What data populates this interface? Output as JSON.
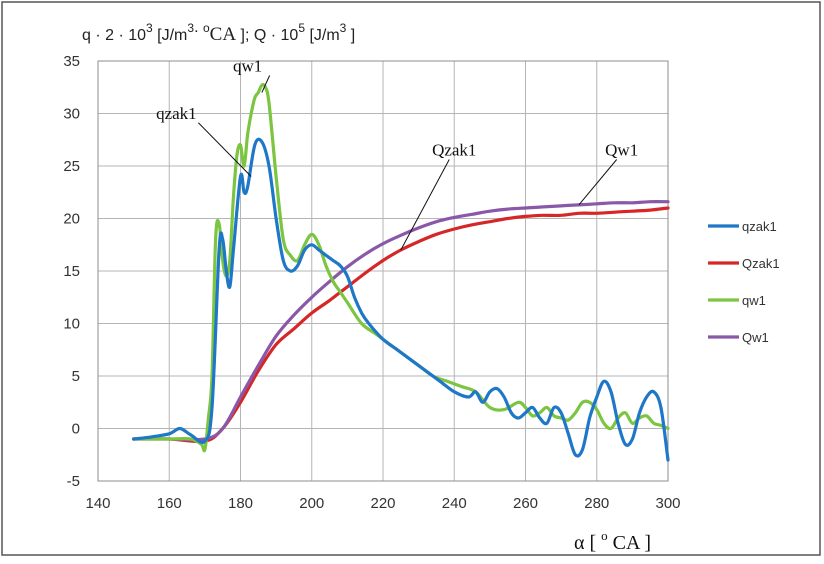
{
  "chart_data": {
    "type": "line",
    "title": "",
    "ylabel": {
      "part1": "q · 2 · 10",
      "exp1": "3",
      "part2": " [J/m",
      "exp2": "3",
      "part3": ". ",
      "deg": "o",
      "part4": "CA",
      "part5": "  ]; Q · 10",
      "exp3": "5",
      "part6": " [J/m",
      "exp4": "3",
      "part7": " ]"
    },
    "xlabel": {
      "alpha": "α",
      "open": " [ ",
      "deg": "o",
      "unit": " CA ",
      "close": "]"
    },
    "xlim": [
      140,
      300
    ],
    "ylim": [
      -5,
      35
    ],
    "xticks": [
      140,
      160,
      180,
      200,
      220,
      240,
      260,
      280,
      300
    ],
    "yticks": [
      -5,
      0,
      5,
      10,
      15,
      20,
      25,
      30,
      35
    ],
    "grid": true,
    "legend_position": "right",
    "series": [
      {
        "name": "qzak1",
        "color": "#1f77c8",
        "points": [
          [
            150,
            -1
          ],
          [
            155,
            -0.8
          ],
          [
            160,
            -0.5
          ],
          [
            163,
            0
          ],
          [
            166,
            -0.6
          ],
          [
            170,
            -1.2
          ],
          [
            172,
            2
          ],
          [
            174,
            17
          ],
          [
            175,
            18
          ],
          [
            176,
            15
          ],
          [
            177,
            13.5
          ],
          [
            178,
            17
          ],
          [
            180,
            24
          ],
          [
            181,
            22.5
          ],
          [
            182,
            23
          ],
          [
            184,
            27
          ],
          [
            186,
            27.3
          ],
          [
            188,
            25
          ],
          [
            190,
            20
          ],
          [
            192,
            16
          ],
          [
            194,
            15
          ],
          [
            196,
            15.5
          ],
          [
            198,
            17
          ],
          [
            200,
            17.5
          ],
          [
            202,
            17
          ],
          [
            204,
            16.5
          ],
          [
            206,
            16
          ],
          [
            208,
            15.5
          ],
          [
            210,
            14.5
          ],
          [
            212,
            12.5
          ],
          [
            214,
            11
          ],
          [
            216,
            10
          ],
          [
            220,
            8.5
          ],
          [
            224,
            7.5
          ],
          [
            228,
            6.5
          ],
          [
            232,
            5.5
          ],
          [
            236,
            4.5
          ],
          [
            240,
            3.5
          ],
          [
            244,
            3
          ],
          [
            246,
            3.5
          ],
          [
            248,
            2.5
          ],
          [
            250,
            3.5
          ],
          [
            252,
            3.8
          ],
          [
            254,
            3
          ],
          [
            256,
            1.5
          ],
          [
            258,
            1
          ],
          [
            260,
            1.5
          ],
          [
            262,
            2
          ],
          [
            264,
            1
          ],
          [
            266,
            0.5
          ],
          [
            268,
            2
          ],
          [
            270,
            1.5
          ],
          [
            272,
            -0.5
          ],
          [
            274,
            -2.5
          ],
          [
            276,
            -2
          ],
          [
            278,
            1
          ],
          [
            280,
            3
          ],
          [
            282,
            4.5
          ],
          [
            284,
            3.5
          ],
          [
            286,
            0.5
          ],
          [
            288,
            -1.5
          ],
          [
            290,
            -1
          ],
          [
            292,
            1.5
          ],
          [
            294,
            3
          ],
          [
            296,
            3.5
          ],
          [
            298,
            2
          ],
          [
            300,
            -3
          ]
        ]
      },
      {
        "name": "Qzak1",
        "color": "#d62728",
        "points": [
          [
            150,
            -1
          ],
          [
            160,
            -1
          ],
          [
            170,
            -1.2
          ],
          [
            175,
            0
          ],
          [
            180,
            2.5
          ],
          [
            185,
            5.5
          ],
          [
            190,
            8
          ],
          [
            195,
            9.5
          ],
          [
            200,
            11
          ],
          [
            205,
            12.2
          ],
          [
            210,
            13.5
          ],
          [
            215,
            14.8
          ],
          [
            220,
            16
          ],
          [
            225,
            17
          ],
          [
            230,
            17.8
          ],
          [
            235,
            18.5
          ],
          [
            240,
            19
          ],
          [
            245,
            19.4
          ],
          [
            250,
            19.7
          ],
          [
            255,
            20
          ],
          [
            260,
            20.2
          ],
          [
            265,
            20.3
          ],
          [
            270,
            20.3
          ],
          [
            275,
            20.5
          ],
          [
            280,
            20.5
          ],
          [
            285,
            20.6
          ],
          [
            290,
            20.7
          ],
          [
            295,
            20.8
          ],
          [
            300,
            21
          ]
        ]
      },
      {
        "name": "qw1",
        "color": "#7cc540",
        "points": [
          [
            150,
            -1
          ],
          [
            160,
            -1
          ],
          [
            166,
            -1
          ],
          [
            169,
            -1.5
          ],
          [
            170,
            -2
          ],
          [
            171,
            1
          ],
          [
            172,
            5
          ],
          [
            173,
            18
          ],
          [
            174,
            19.5
          ],
          [
            175,
            16
          ],
          [
            176,
            14.5
          ],
          [
            177,
            16
          ],
          [
            178,
            22
          ],
          [
            179,
            26
          ],
          [
            180,
            27
          ],
          [
            181,
            25
          ],
          [
            182,
            28
          ],
          [
            183,
            30
          ],
          [
            184,
            31.5
          ],
          [
            185,
            32
          ],
          [
            186,
            32.7
          ],
          [
            187,
            32.5
          ],
          [
            188,
            31
          ],
          [
            190,
            24
          ],
          [
            192,
            18
          ],
          [
            194,
            16.5
          ],
          [
            196,
            16
          ],
          [
            198,
            17.5
          ],
          [
            200,
            18.5
          ],
          [
            202,
            17.5
          ],
          [
            204,
            15.5
          ],
          [
            206,
            14
          ],
          [
            208,
            13
          ],
          [
            210,
            12
          ],
          [
            214,
            10
          ],
          [
            218,
            9
          ],
          [
            222,
            8
          ],
          [
            226,
            7
          ],
          [
            230,
            6
          ],
          [
            234,
            5
          ],
          [
            238,
            4.5
          ],
          [
            242,
            4
          ],
          [
            246,
            3.5
          ],
          [
            250,
            2
          ],
          [
            254,
            1.8
          ],
          [
            258,
            2.5
          ],
          [
            260,
            2
          ],
          [
            262,
            1.2
          ],
          [
            264,
            1.5
          ],
          [
            266,
            2
          ],
          [
            268,
            1.2
          ],
          [
            270,
            1
          ],
          [
            272,
            0.8
          ],
          [
            274,
            1.5
          ],
          [
            276,
            2.5
          ],
          [
            278,
            2.5
          ],
          [
            280,
            1.8
          ],
          [
            282,
            0.5
          ],
          [
            284,
            0
          ],
          [
            286,
            1
          ],
          [
            288,
            1.5
          ],
          [
            290,
            0.5
          ],
          [
            292,
            1
          ],
          [
            294,
            1.2
          ],
          [
            296,
            0.5
          ],
          [
            298,
            0.3
          ],
          [
            300,
            0
          ]
        ]
      },
      {
        "name": "Qw1",
        "color": "#8a58a8",
        "points": [
          [
            150,
            -1
          ],
          [
            160,
            -1
          ],
          [
            170,
            -1
          ],
          [
            175,
            0
          ],
          [
            180,
            3
          ],
          [
            185,
            6
          ],
          [
            190,
            8.8
          ],
          [
            195,
            10.8
          ],
          [
            200,
            12.5
          ],
          [
            205,
            14
          ],
          [
            210,
            15.4
          ],
          [
            215,
            16.6
          ],
          [
            220,
            17.6
          ],
          [
            225,
            18.4
          ],
          [
            230,
            19.1
          ],
          [
            235,
            19.7
          ],
          [
            240,
            20.1
          ],
          [
            245,
            20.4
          ],
          [
            250,
            20.7
          ],
          [
            255,
            20.9
          ],
          [
            260,
            21
          ],
          [
            265,
            21.1
          ],
          [
            270,
            21.2
          ],
          [
            275,
            21.3
          ],
          [
            280,
            21.4
          ],
          [
            285,
            21.5
          ],
          [
            290,
            21.5
          ],
          [
            295,
            21.6
          ],
          [
            300,
            21.6
          ]
        ]
      }
    ],
    "annotations": [
      {
        "label": "qw1",
        "x": 182,
        "y": 34,
        "target_x": 186,
        "target_y": 32
      },
      {
        "label": "qzak1",
        "x": 162,
        "y": 29.5,
        "target_x": 183,
        "target_y": 24
      },
      {
        "label": "Qzak1",
        "x": 240,
        "y": 26,
        "target_x": 225,
        "target_y": 17
      },
      {
        "label": "Qw1",
        "x": 287,
        "y": 26,
        "target_x": 275,
        "target_y": 21.3
      }
    ]
  }
}
